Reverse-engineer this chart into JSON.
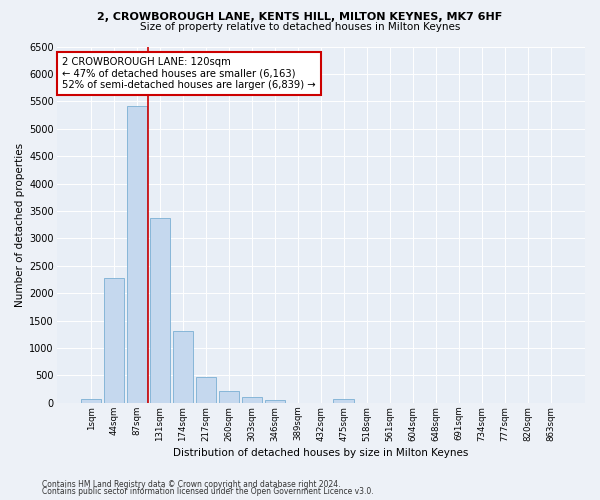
{
  "title1": "2, CROWBOROUGH LANE, KENTS HILL, MILTON KEYNES, MK7 6HF",
  "title2": "Size of property relative to detached houses in Milton Keynes",
  "xlabel": "Distribution of detached houses by size in Milton Keynes",
  "ylabel": "Number of detached properties",
  "bar_color": "#c5d8ee",
  "bar_edge_color": "#7aafd4",
  "background_color": "#e8eef6",
  "grid_color": "#ffffff",
  "annotation_text": "2 CROWBOROUGH LANE: 120sqm\n← 47% of detached houses are smaller (6,163)\n52% of semi-detached houses are larger (6,839) →",
  "vline_color": "#cc0000",
  "vline_pos": 2.5,
  "categories": [
    "1sqm",
    "44sqm",
    "87sqm",
    "131sqm",
    "174sqm",
    "217sqm",
    "260sqm",
    "303sqm",
    "346sqm",
    "389sqm",
    "432sqm",
    "475sqm",
    "518sqm",
    "561sqm",
    "604sqm",
    "648sqm",
    "691sqm",
    "734sqm",
    "777sqm",
    "820sqm",
    "863sqm"
  ],
  "values": [
    80,
    2280,
    5420,
    3380,
    1310,
    480,
    210,
    110,
    60,
    0,
    0,
    70,
    0,
    0,
    0,
    0,
    0,
    0,
    0,
    0,
    0
  ],
  "ylim": [
    0,
    6500
  ],
  "yticks": [
    0,
    500,
    1000,
    1500,
    2000,
    2500,
    3000,
    3500,
    4000,
    4500,
    5000,
    5500,
    6000,
    6500
  ],
  "footnote1": "Contains HM Land Registry data © Crown copyright and database right 2024.",
  "footnote2": "Contains public sector information licensed under the Open Government Licence v3.0.",
  "fig_bg": "#edf1f7"
}
